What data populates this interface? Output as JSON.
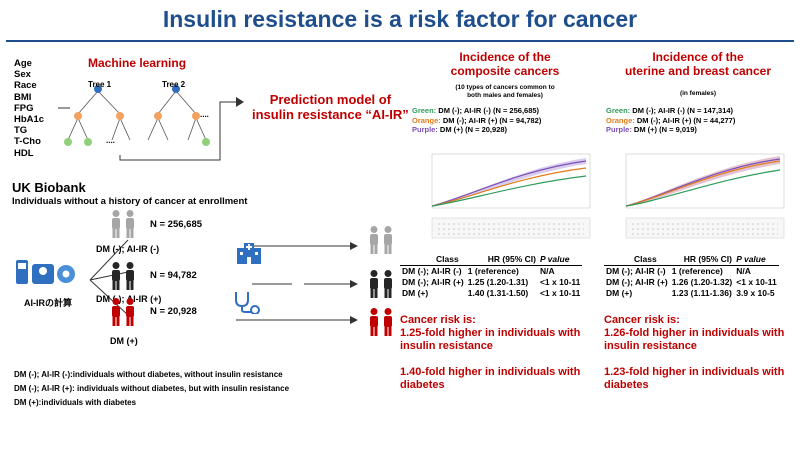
{
  "title": "Insulin resistance is a risk factor for cancer",
  "variables": [
    "Age",
    "Sex",
    "Race",
    "BMI",
    "FPG",
    "HbA1c",
    "TG",
    "T-Cho",
    "HDL"
  ],
  "machine_learning": {
    "label": "Machine learning",
    "tree1": "Tree 1",
    "tree2": "Tree 2",
    "ellipsis": "....",
    "model_label_line1": "Prediction model of",
    "model_label_line2": "insulin resistance “AI-IR”"
  },
  "uk_biobank": {
    "title": "UK Biobank",
    "subtitle": "Individuals without a history of cancer at enrollment",
    "calc_label": "AI-IRの計算",
    "groups": [
      {
        "n": "N = 256,685",
        "label": "DM (-); AI-IR (-)",
        "color": "#a6a6a6"
      },
      {
        "n": "N = 94,782",
        "label": "DM (-); AI-IR (+)",
        "color": "#262626"
      },
      {
        "n": "N = 20,928",
        "label": "DM (+)",
        "color": "#c00000"
      }
    ],
    "definitions": [
      "DM (-); AI-IR (-):individuals without diabetes, without insulin resistance",
      "DM (-); AI-IR (+): individuals without diabetes, but with insulin resistance",
      "DM (+):individuals with diabetes"
    ]
  },
  "panel_composite": {
    "title_line1": "Incidence of the",
    "title_line2": "composite cancers",
    "note_line1": "(10 types of cancers common to",
    "note_line2": "both males and females)",
    "legend": [
      {
        "color_name": "Green:",
        "text": " DM (-); AI-IR (-) (N = 256,685)",
        "color": "#2e9c5a"
      },
      {
        "color_name": "Orange:",
        "text": " DM (-); AI-IR (+) (N = 94,782)",
        "color": "#e07b1a"
      },
      {
        "color_name": "Purple:",
        "text": " DM (+) (N = 20,928)",
        "color": "#7b4fb5"
      }
    ],
    "table": {
      "headers": [
        "Class",
        "HR (95% CI)",
        "P value"
      ],
      "rows": [
        [
          "DM (-); AI-IR (-)",
          "1 (reference)",
          "N/A"
        ],
        [
          "DM (-); AI-IR (+)",
          "1.25 (1.20-1.31)",
          "<1 x 10-11"
        ],
        [
          "DM (+)",
          "1.40 (1.31-1.50)",
          "<1 x 10-11"
        ]
      ]
    },
    "risk": {
      "heading": "Cancer risk is:",
      "line1a": "1.25-fold higher in individuals with",
      "line1b": "insulin resistance",
      "line2a": "1.40-fold higher in individuals with",
      "line2b": "diabetes"
    }
  },
  "panel_female": {
    "title_line1": "Incidence of the",
    "title_line2": "uterine and breast cancer",
    "note_line1": "(in females)",
    "legend": [
      {
        "color_name": "Green:",
        "text": " DM (-); AI-IR (-) (N = 147,314)",
        "color": "#2e9c5a"
      },
      {
        "color_name": "Orange:",
        "text": " DM (-); AI-IR (+) (N = 44,277)",
        "color": "#e07b1a"
      },
      {
        "color_name": "Purple:",
        "text": " DM (+) (N = 9,019)",
        "color": "#7b4fb5"
      }
    ],
    "table": {
      "headers": [
        "Class",
        "HR (95% CI)",
        "P value"
      ],
      "rows": [
        [
          "DM (-); AI-IR (-)",
          "1 (reference)",
          "N/A"
        ],
        [
          "DM (-); AI-IR (+)",
          "1.26 (1.20-1.32)",
          "<1 x 10-11"
        ],
        [
          "DM (+)",
          "1.23 (1.11-1.36)",
          "3.9 x 10-5"
        ]
      ]
    },
    "risk": {
      "heading": "Cancer risk is:",
      "line1a": "1.26-fold higher in individuals with",
      "line1b": "insulin resistance",
      "line2a": "1.23-fold higher in individuals with",
      "line2b": "diabetes"
    }
  },
  "colors": {
    "title_blue": "#1f4e8c",
    "accent_red": "#c00000",
    "node_blue": "#2f6fc0",
    "node_orange": "#f4a261",
    "node_green": "#8fd17a",
    "icon_blue": "#2f6fc0"
  },
  "icons": [
    "scale-icon",
    "blood-pressure-icon",
    "hospital-icon",
    "stethoscope-icon",
    "person-icon"
  ]
}
